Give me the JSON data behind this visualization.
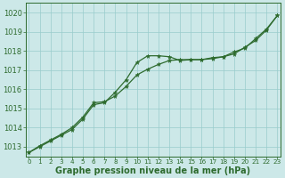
{
  "x": [
    0,
    1,
    2,
    3,
    4,
    5,
    6,
    7,
    8,
    9,
    10,
    11,
    12,
    13,
    14,
    15,
    16,
    17,
    18,
    19,
    20,
    21,
    22,
    23
  ],
  "line1": [
    1012.7,
    1013.0,
    1013.3,
    1013.6,
    1013.9,
    1014.45,
    1015.2,
    1015.3,
    1015.85,
    1016.5,
    1017.4,
    1017.75,
    1017.75,
    1017.7,
    1017.5,
    1017.55,
    1017.55,
    1017.65,
    1017.7,
    1017.85,
    1018.2,
    1018.55,
    1019.1,
    1019.85
  ],
  "line2": [
    1012.7,
    1013.05,
    1013.35,
    1013.65,
    1014.0,
    1014.55,
    1015.3,
    1015.35,
    1015.65,
    1016.15,
    1016.75,
    1017.05,
    1017.3,
    1017.5,
    1017.55,
    1017.55,
    1017.55,
    1017.6,
    1017.7,
    1017.95,
    1018.15,
    1018.65,
    1019.15,
    1019.85
  ],
  "ylim_min": 1012.5,
  "ylim_max": 1020.5,
  "yticks": [
    1013,
    1014,
    1015,
    1016,
    1017,
    1018,
    1019,
    1020
  ],
  "xlabel": "Graphe pression niveau de la mer (hPa)",
  "line_color": "#2e6b2e",
  "marker_color": "#2e6b2e",
  "bg_color": "#cce8e8",
  "grid_color": "#99cccc",
  "tick_label_color": "#2e6b2e",
  "xlabel_color": "#2e6b2e",
  "spine_color": "#2e6b2e",
  "ytick_fontsize": 6.0,
  "xtick_fontsize": 5.2,
  "xlabel_fontsize": 7.0,
  "fig_width": 3.2,
  "fig_height": 2.0,
  "dpi": 100
}
